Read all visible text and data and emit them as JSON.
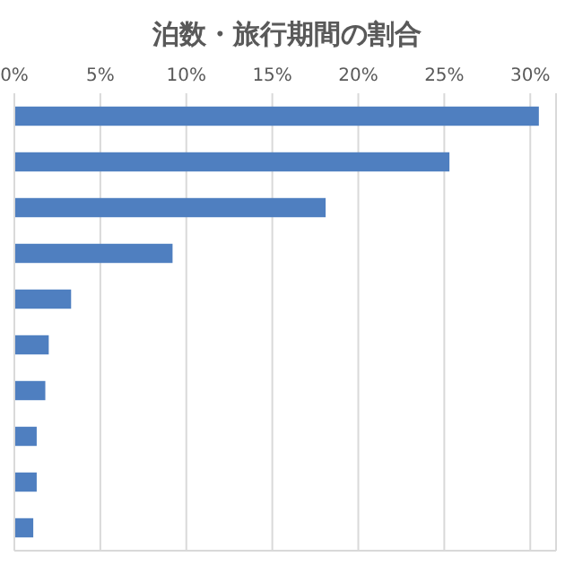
{
  "chart_data": {
    "type": "bar",
    "orientation": "horizontal",
    "title": "泊数・旅行期間の割合",
    "categories": [
      null,
      null,
      null,
      null,
      null,
      null,
      null,
      null,
      null,
      null
    ],
    "values": [
      30.5,
      25.3,
      18.1,
      9.2,
      3.3,
      2.0,
      1.8,
      1.3,
      1.3,
      1.1
    ],
    "color": "#4f7fc0",
    "xlim": [
      0,
      31.5
    ],
    "xticks": [
      {
        "value": 0,
        "label": "0%"
      },
      {
        "value": 5,
        "label": "5%"
      },
      {
        "value": 10,
        "label": "10%"
      },
      {
        "value": 15,
        "label": "15%"
      },
      {
        "value": 20,
        "label": "20%"
      },
      {
        "value": 25,
        "label": "25%"
      },
      {
        "value": 30,
        "label": "30%"
      }
    ],
    "grid": "x"
  }
}
